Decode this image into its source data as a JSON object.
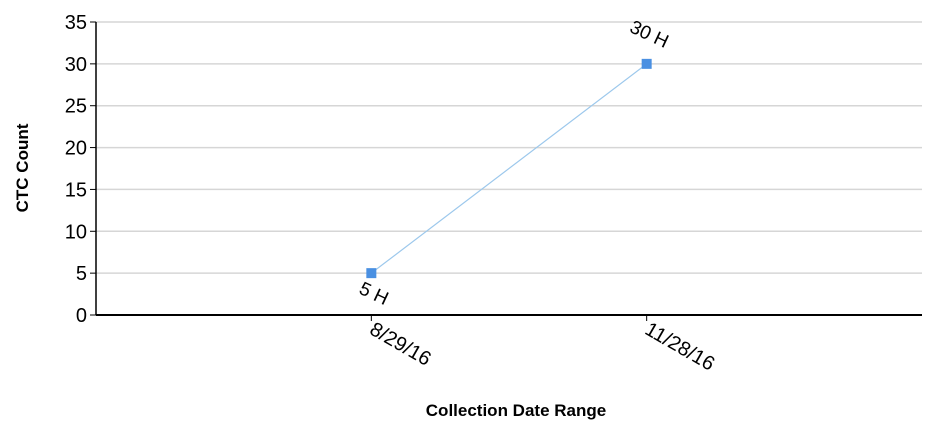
{
  "chart_data": {
    "type": "line",
    "title": "",
    "xlabel": "Collection Date Range",
    "ylabel": "CTC Count",
    "categories": [
      "8/29/16",
      "11/28/16"
    ],
    "series": [
      {
        "values": [
          5,
          30
        ],
        "data_labels": [
          "5 H",
          "30 H"
        ],
        "color": "#4a90e2",
        "line_color": "#9cc8ec"
      }
    ],
    "ylim": [
      0,
      35
    ],
    "yticks": [
      0,
      5,
      10,
      15,
      20,
      25,
      30,
      35
    ],
    "xticks": [
      1,
      2
    ],
    "xlim": [
      0,
      3
    ],
    "grid": true,
    "legend": "none"
  }
}
